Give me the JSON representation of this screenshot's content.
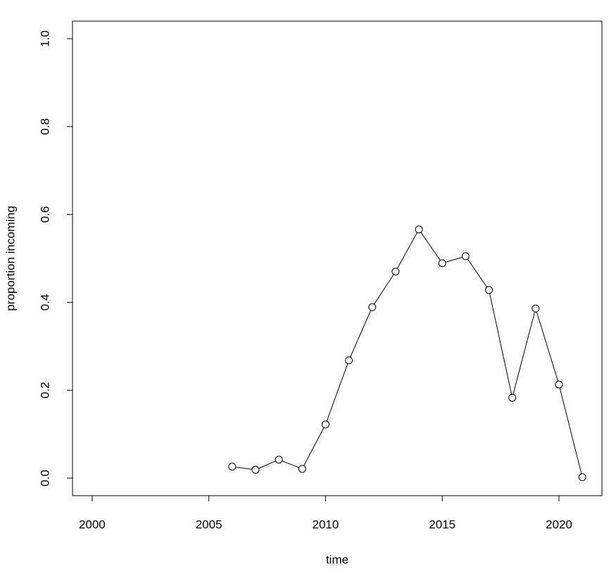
{
  "chart_data": {
    "type": "line",
    "xlabel": "time",
    "ylabel": "proportion incoming",
    "x": [
      2006,
      2007,
      2008,
      2009,
      2010,
      2011,
      2012,
      2013,
      2014,
      2015,
      2016,
      2017,
      2018,
      2019,
      2020,
      2021
    ],
    "values": [
      0.026,
      0.019,
      0.042,
      0.021,
      0.122,
      0.268,
      0.389,
      0.47,
      0.566,
      0.489,
      0.505,
      0.428,
      0.183,
      0.386,
      0.213,
      0.002
    ],
    "color": "#000000",
    "xlim": [
      1999.16,
      2021.84
    ],
    "xticks": [
      2000,
      2005,
      2010,
      2015,
      2020
    ],
    "ylim": [
      -0.04,
      1.04
    ],
    "yticks": [
      {
        "value": 0,
        "label": "0.0"
      },
      0.2,
      0.4,
      0.6,
      0.8,
      {
        "value": 1,
        "label": "1.0"
      }
    ],
    "markers": true,
    "grid": false
  }
}
